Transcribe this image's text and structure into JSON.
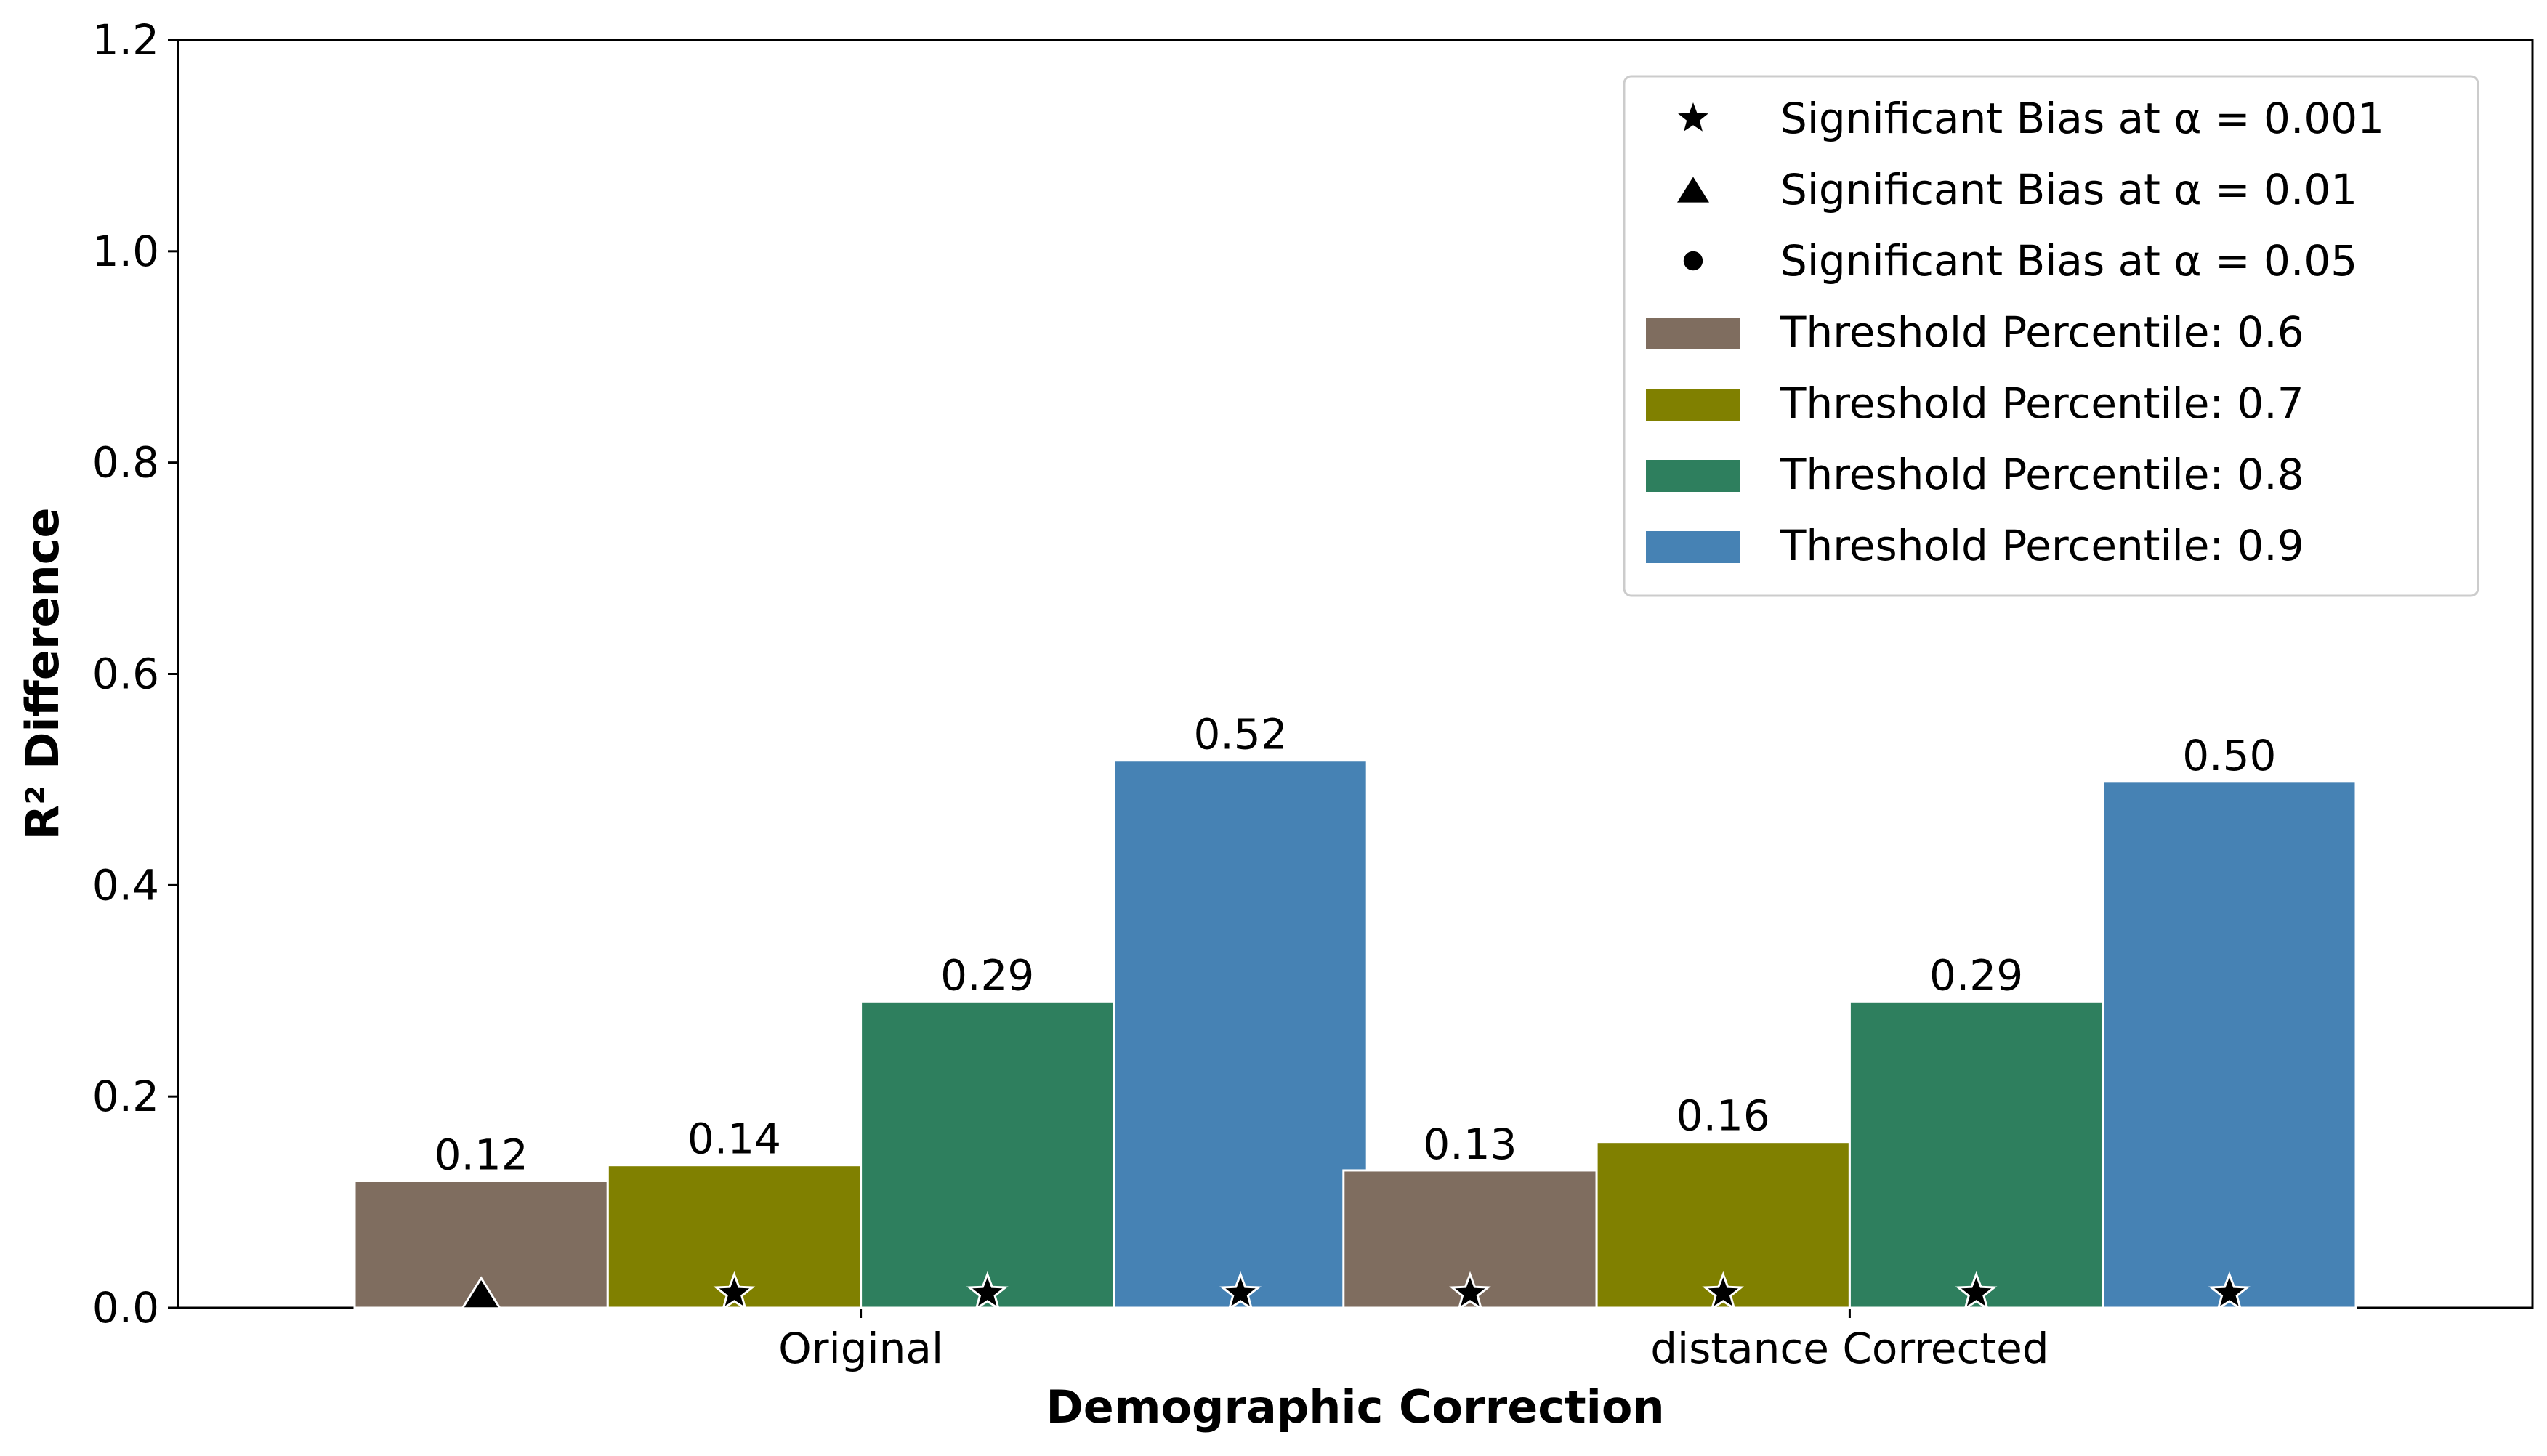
{
  "chart_data": {
    "type": "bar",
    "title": "",
    "xlabel": "Demographic Correction",
    "ylabel": "R² Difference",
    "ylim": [
      0,
      1.2
    ],
    "yticks": [
      "0.0",
      "0.2",
      "0.4",
      "0.6",
      "0.8",
      "1.0",
      "1.2"
    ],
    "categories": [
      "Original",
      "distance Corrected"
    ],
    "series": [
      {
        "name": "Threshold Percentile: 0.6",
        "color": "#7f6d5f",
        "values": [
          0.12,
          0.13
        ],
        "labels": [
          "0.12",
          "0.13"
        ],
        "markers": [
          "triangle",
          "star"
        ]
      },
      {
        "name": "Threshold Percentile: 0.7",
        "color": "#808000",
        "values": [
          0.135,
          0.157
        ],
        "labels": [
          "0.14",
          "0.16"
        ],
        "markers": [
          "star",
          "star"
        ]
      },
      {
        "name": "Threshold Percentile: 0.8",
        "color": "#2e7f5e",
        "values": [
          0.29,
          0.29
        ],
        "labels": [
          "0.29",
          "0.29"
        ],
        "markers": [
          "star",
          "star"
        ]
      },
      {
        "name": "Threshold Percentile: 0.9",
        "color": "#4682b4",
        "values": [
          0.518,
          0.498
        ],
        "labels": [
          "0.52",
          "0.50"
        ],
        "markers": [
          "star",
          "star"
        ]
      }
    ],
    "significance_legend": [
      {
        "marker": "star",
        "label": "Significant Bias at α = 0.001"
      },
      {
        "marker": "triangle",
        "label": "Significant Bias at α = 0.01"
      },
      {
        "marker": "circle",
        "label": "Significant Bias at α = 0.05"
      }
    ],
    "legend_position": "top-right",
    "grid": false
  }
}
